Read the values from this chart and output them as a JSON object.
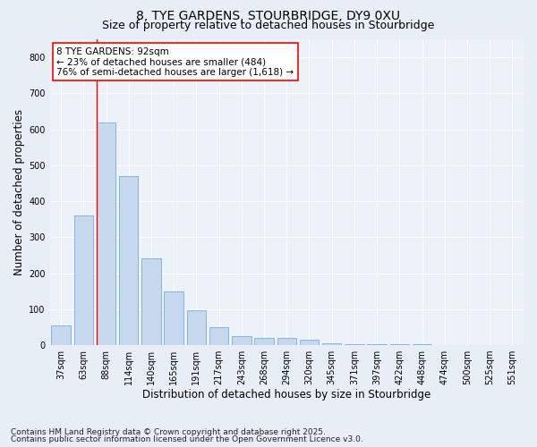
{
  "title1": "8, TYE GARDENS, STOURBRIDGE, DY9 0XU",
  "title2": "Size of property relative to detached houses in Stourbridge",
  "xlabel": "Distribution of detached houses by size in Stourbridge",
  "ylabel": "Number of detached properties",
  "categories": [
    "37sqm",
    "63sqm",
    "88sqm",
    "114sqm",
    "140sqm",
    "165sqm",
    "191sqm",
    "217sqm",
    "243sqm",
    "268sqm",
    "294sqm",
    "320sqm",
    "345sqm",
    "371sqm",
    "397sqm",
    "422sqm",
    "448sqm",
    "474sqm",
    "500sqm",
    "525sqm",
    "551sqm"
  ],
  "values": [
    55,
    360,
    620,
    470,
    240,
    150,
    97,
    50,
    25,
    20,
    20,
    15,
    5,
    2,
    2,
    2,
    2,
    1,
    1,
    1,
    1
  ],
  "bar_color": "#c5d8ed",
  "bar_edge_color": "#7aaedb",
  "redline_index": 2,
  "redline_label": "8 TYE GARDENS: 92sqm",
  "annotation_line2": "← 23% of detached houses are smaller (484)",
  "annotation_line3": "76% of semi-detached houses are larger (1,618) →",
  "ylim": [
    0,
    850
  ],
  "yticks": [
    0,
    100,
    200,
    300,
    400,
    500,
    600,
    700,
    800
  ],
  "footnote1": "Contains HM Land Registry data © Crown copyright and database right 2025.",
  "footnote2": "Contains public sector information licensed under the Open Government Licence v3.0.",
  "bg_color": "#e8eef5",
  "plot_bg_color": "#edf2f8",
  "grid_color": "#ffffff",
  "title_fontsize": 10,
  "subtitle_fontsize": 9,
  "axis_label_fontsize": 8.5,
  "tick_fontsize": 7,
  "footnote_fontsize": 6.5,
  "annotation_fontsize": 7.5
}
